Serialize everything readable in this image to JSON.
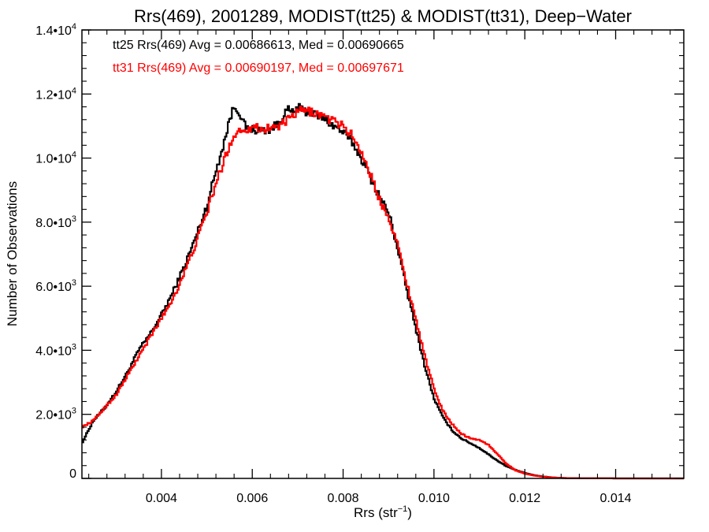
{
  "chart_data": {
    "type": "line",
    "title": "Rrs(469), 2001289, MODIST(tt25) & MODIST(tt31), Deep−Water",
    "xlabel_main": "Rrs (str",
    "xlabel_sup": "−1",
    "xlabel_close": ")",
    "ylabel": "Number of Observations",
    "xlim": [
      0.00225,
      0.0155
    ],
    "ylim": [
      0,
      14000
    ],
    "grid": false,
    "x_ticks": [
      {
        "value": 0.004,
        "label": "0.004"
      },
      {
        "value": 0.006,
        "label": "0.006"
      },
      {
        "value": 0.008,
        "label": "0.008"
      },
      {
        "value": 0.01,
        "label": "0.010"
      },
      {
        "value": 0.012,
        "label": "0.012"
      },
      {
        "value": 0.014,
        "label": "0.014"
      }
    ],
    "y_ticks": [
      {
        "value": 0,
        "mant": "0",
        "exp": ""
      },
      {
        "value": 2000,
        "mant": "2.0•10",
        "exp": "3"
      },
      {
        "value": 4000,
        "mant": "4.0•10",
        "exp": "3"
      },
      {
        "value": 6000,
        "mant": "6.0•10",
        "exp": "3"
      },
      {
        "value": 8000,
        "mant": "8.0•10",
        "exp": "3"
      },
      {
        "value": 10000,
        "mant": "1.0•10",
        "exp": "4"
      },
      {
        "value": 12000,
        "mant": "1.2•10",
        "exp": "4"
      },
      {
        "value": 14000,
        "mant": "1.4•10",
        "exp": "4"
      }
    ],
    "annotations": [
      {
        "text": "tt25 Rrs(469) Avg = 0.00686613, Med = 0.00690665",
        "color": "#000000"
      },
      {
        "text": "tt31 Rrs(469) Avg = 0.00690197, Med = 0.00697671",
        "color": "#ff0000"
      }
    ],
    "series": [
      {
        "color": "#000000",
        "x": [
          0.00225,
          0.0025,
          0.00275,
          0.003,
          0.00325,
          0.0035,
          0.00375,
          0.004,
          0.00425,
          0.0045,
          0.00475,
          0.005,
          0.0052,
          0.0054,
          0.0055,
          0.0056,
          0.0057,
          0.0058,
          0.0059,
          0.006,
          0.0062,
          0.0064,
          0.0066,
          0.0067,
          0.0068,
          0.0069,
          0.007,
          0.0071,
          0.0072,
          0.0073,
          0.0074,
          0.0075,
          0.0076,
          0.0077,
          0.0078,
          0.008,
          0.0082,
          0.0084,
          0.0086,
          0.0088,
          0.009,
          0.0092,
          0.0094,
          0.0096,
          0.0098,
          0.01,
          0.0102,
          0.0104,
          0.0106,
          0.0108,
          0.011,
          0.0112,
          0.0114,
          0.0116,
          0.0118,
          0.012,
          0.0122,
          0.0124,
          0.0126,
          0.0128,
          0.013,
          0.0135,
          0.014,
          0.0145,
          0.015,
          0.0155
        ],
        "y": [
          1100,
          1800,
          2200,
          2700,
          3300,
          4000,
          4500,
          5100,
          5800,
          6600,
          7500,
          8500,
          9600,
          10600,
          11200,
          11600,
          11500,
          11100,
          10900,
          10900,
          10850,
          10900,
          11100,
          11400,
          11500,
          11400,
          11600,
          11500,
          11450,
          11400,
          11350,
          11300,
          11200,
          11100,
          11000,
          10800,
          10500,
          10000,
          9400,
          8800,
          8300,
          7200,
          5900,
          4700,
          3500,
          2500,
          1900,
          1500,
          1250,
          1100,
          950,
          750,
          550,
          380,
          260,
          170,
          100,
          60,
          30,
          15,
          8,
          3,
          1,
          0,
          0,
          0
        ]
      },
      {
        "color": "#ff0000",
        "x": [
          0.00225,
          0.0025,
          0.00275,
          0.003,
          0.00325,
          0.0035,
          0.00375,
          0.004,
          0.00425,
          0.0045,
          0.00475,
          0.005,
          0.0052,
          0.0054,
          0.0055,
          0.0056,
          0.0057,
          0.0058,
          0.0059,
          0.006,
          0.0062,
          0.0064,
          0.0066,
          0.0067,
          0.0068,
          0.0069,
          0.007,
          0.0071,
          0.0072,
          0.0073,
          0.0074,
          0.0075,
          0.0076,
          0.0077,
          0.0078,
          0.008,
          0.0082,
          0.0084,
          0.0086,
          0.0088,
          0.009,
          0.0092,
          0.0094,
          0.0096,
          0.0098,
          0.01,
          0.0102,
          0.0104,
          0.0106,
          0.0108,
          0.011,
          0.0112,
          0.0114,
          0.0116,
          0.0118,
          0.012,
          0.0122,
          0.0124,
          0.0126,
          0.0128,
          0.013,
          0.0135,
          0.014,
          0.0145,
          0.015,
          0.0155
        ],
        "y": [
          1600,
          1800,
          2200,
          2600,
          3200,
          3800,
          4400,
          5000,
          5600,
          6400,
          7300,
          8300,
          9200,
          10000,
          10400,
          10700,
          10850,
          10900,
          10900,
          11000,
          10900,
          10950,
          11000,
          11100,
          11200,
          11300,
          11450,
          11500,
          11450,
          11450,
          11400,
          11350,
          11300,
          11200,
          11150,
          11000,
          10700,
          10200,
          9500,
          8700,
          8200,
          7300,
          6100,
          5000,
          3800,
          2800,
          2100,
          1700,
          1400,
          1250,
          1200,
          1050,
          750,
          450,
          250,
          150,
          90,
          55,
          30,
          15,
          8,
          3,
          1,
          0,
          0,
          0
        ]
      }
    ]
  }
}
